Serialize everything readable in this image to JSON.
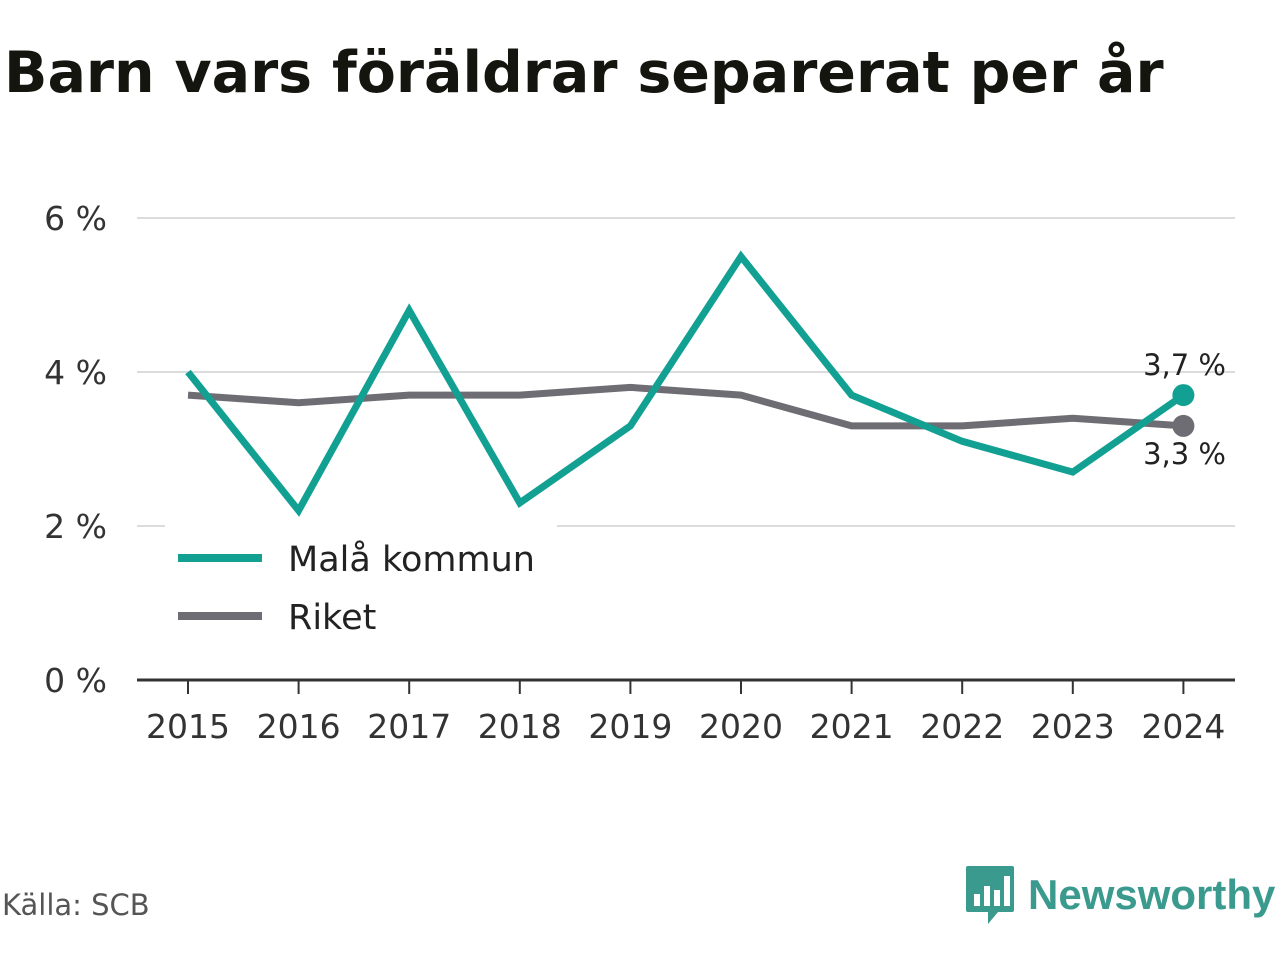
{
  "title": "Barn vars föräldrar separerat per år",
  "source": "Källa: SCB",
  "brand": {
    "name": "Newsworthy",
    "icon": "bar-chart-speech-bubble-icon",
    "color": "#3a9a8e"
  },
  "chart_data": {
    "type": "line",
    "x": [
      "2015",
      "2016",
      "2017",
      "2018",
      "2019",
      "2020",
      "2021",
      "2022",
      "2023",
      "2024"
    ],
    "yticks": [
      "0 %",
      "2 %",
      "4 %",
      "6 %"
    ],
    "ylim": [
      0,
      6
    ],
    "grid": true,
    "legend": "bottom-left",
    "series": [
      {
        "name": "Malå kommun",
        "color": "#12a093",
        "values": [
          4.0,
          2.2,
          4.8,
          2.3,
          3.3,
          5.5,
          3.7,
          3.1,
          2.7,
          3.7
        ],
        "end_label": "3,7 %"
      },
      {
        "name": "Riket",
        "color": "#6e6d73",
        "values": [
          3.7,
          3.6,
          3.7,
          3.7,
          3.8,
          3.7,
          3.3,
          3.3,
          3.4,
          3.3
        ],
        "end_label": "3,3 %"
      }
    ]
  }
}
